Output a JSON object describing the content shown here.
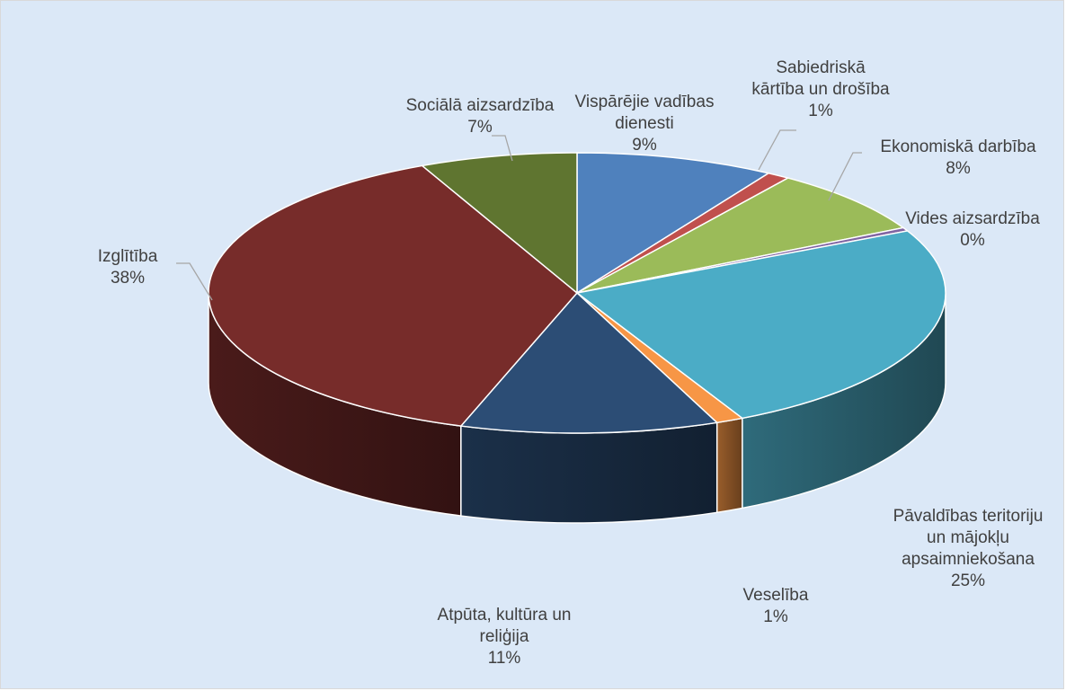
{
  "chart_data": {
    "type": "pie",
    "style": "3d",
    "title": "",
    "slices": [
      {
        "label_lines": [
          "Vispārējie vadības",
          "dienesti"
        ],
        "percent_label": "9%",
        "value": 8.7,
        "color": "#4f81bd"
      },
      {
        "label_lines": [
          "Sabiedriskā",
          "kārtība un drošība"
        ],
        "percent_label": "1%",
        "value": 1.0,
        "color": "#c0504d"
      },
      {
        "label_lines": [
          "Ekonomiskā darbība"
        ],
        "percent_label": "8%",
        "value": 7.6,
        "color": "#9bbb59"
      },
      {
        "label_lines": [
          "Vides aizsardzība"
        ],
        "percent_label": "0%",
        "value": 0.4,
        "color": "#8064a2"
      },
      {
        "label_lines": [
          "Pāvaldības teritoriju",
          "un mājokļu",
          "apsaimniekošana"
        ],
        "percent_label": "25%",
        "value": 24.9,
        "color": "#4bacc6"
      },
      {
        "label_lines": [
          "Veselība"
        ],
        "percent_label": "1%",
        "value": 1.2,
        "color": "#f79646"
      },
      {
        "label_lines": [
          "Atpūta, kultūra un",
          "reliģija"
        ],
        "percent_label": "11%",
        "value": 11.3,
        "color": "#2c4d75"
      },
      {
        "label_lines": [
          "Izglītība"
        ],
        "percent_label": "38%",
        "value": 38.0,
        "color": "#772c2a"
      },
      {
        "label_lines": [
          "Sociālā aizsardzība"
        ],
        "percent_label": "7%",
        "value": 6.9,
        "color": "#5f7530"
      }
    ]
  }
}
